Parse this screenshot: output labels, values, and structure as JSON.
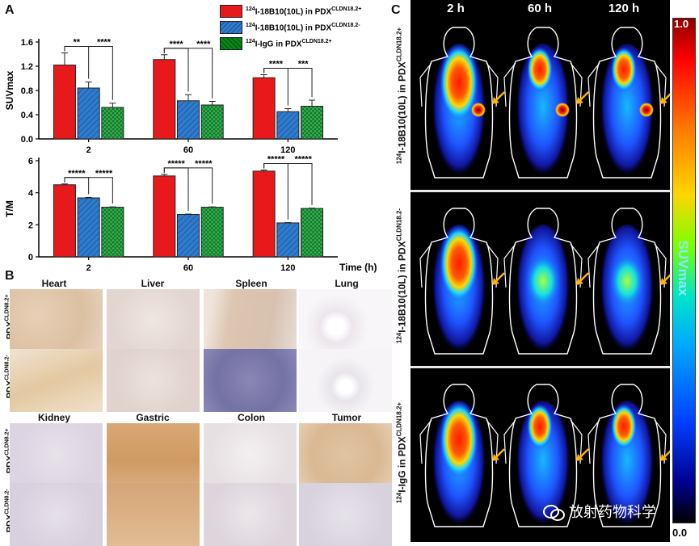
{
  "panels": {
    "a": "A",
    "b": "B",
    "c": "C"
  },
  "legend": [
    {
      "prefix": "124",
      "text": "I-18B10(10L) in PDX",
      "suffix": "CLDN18.2+",
      "color": "#e8191b",
      "pattern": "solid"
    },
    {
      "prefix": "124",
      "text": "I-18B10(10L) in PDX",
      "suffix": "CLDN18.2-",
      "color": "#2f7bcf",
      "pattern": "hatch"
    },
    {
      "prefix": "124",
      "text": "I-IgG in PDX",
      "suffix": "CLDN18.2+",
      "color": "#2fb84c",
      "pattern": "cross"
    }
  ],
  "chart_data": [
    {
      "type": "bar",
      "ylabel": "SUVmax",
      "categories": [
        "2",
        "60",
        "120"
      ],
      "ylim": [
        0,
        1.6
      ],
      "yticks": [
        "0.0",
        "0.4",
        "0.8",
        "1.2",
        "1.6"
      ],
      "series": [
        {
          "values": [
            1.22,
            1.31,
            1.01
          ],
          "errors": [
            0.2,
            0.08,
            0.05
          ]
        },
        {
          "values": [
            0.84,
            0.63,
            0.45
          ],
          "errors": [
            0.1,
            0.1,
            0.05
          ]
        },
        {
          "values": [
            0.52,
            0.56,
            0.54
          ],
          "errors": [
            0.07,
            0.06,
            0.1
          ]
        }
      ],
      "significance": [
        {
          "group": 0,
          "pairs": [
            {
              "to": 1,
              "label": "**"
            },
            {
              "to": 2,
              "label": "****"
            }
          ]
        },
        {
          "group": 1,
          "pairs": [
            {
              "to": 1,
              "label": "****"
            },
            {
              "to": 2,
              "label": "****"
            }
          ]
        },
        {
          "group": 2,
          "pairs": [
            {
              "to": 1,
              "label": "****"
            },
            {
              "to": 2,
              "label": "***"
            }
          ]
        }
      ]
    },
    {
      "type": "bar",
      "ylabel": "T/M",
      "xlabel": "Time (h)",
      "categories": [
        "2",
        "60",
        "120"
      ],
      "ylim": [
        0,
        6
      ],
      "yticks": [
        "0",
        "2",
        "4",
        "6"
      ],
      "series": [
        {
          "values": [
            4.5,
            5.05,
            5.35
          ],
          "errors": [
            0.05,
            0.1,
            0.07
          ]
        },
        {
          "values": [
            3.68,
            2.65,
            2.12
          ],
          "errors": [
            0.03,
            0.02,
            0.02
          ]
        },
        {
          "values": [
            3.1,
            3.1,
            3.02
          ],
          "errors": [
            0.02,
            0.02,
            0.02
          ]
        }
      ],
      "significance": [
        {
          "group": 0,
          "pairs": [
            {
              "to": 1,
              "label": "*****"
            },
            {
              "to": 2,
              "label": "*****"
            }
          ]
        },
        {
          "group": 1,
          "pairs": [
            {
              "to": 1,
              "label": "*****"
            },
            {
              "to": 2,
              "label": "*****"
            }
          ]
        },
        {
          "group": 2,
          "pairs": [
            {
              "to": 1,
              "label": "*****"
            },
            {
              "to": 2,
              "label": "*****"
            }
          ]
        }
      ]
    }
  ],
  "panel_b": {
    "top_tissues": [
      "Heart",
      "Liver",
      "Spleen",
      "Lung"
    ],
    "bottom_tissues": [
      "Kidney",
      "Gastric",
      "Colon",
      "Tumor"
    ],
    "row_pos": {
      "prefix": "PDX",
      "suffix": "CLDN8.2+"
    },
    "row_neg": {
      "prefix": "PDX",
      "suffix": "CLDN8.2-"
    }
  },
  "panel_c": {
    "times": [
      "2 h",
      "60 h",
      "120 h"
    ],
    "rows": [
      {
        "prefix": "124",
        "text": "I-18B10(10L) in PDX",
        "suffix": "CLDN18.2+"
      },
      {
        "prefix": "124",
        "text": "I-18B10(10L) in PDX",
        "suffix": "CLDN18.2-"
      },
      {
        "prefix": "124",
        "text": "I-IgG in PDX",
        "suffix": "CLDN18.2+"
      }
    ],
    "colorbar": {
      "max": "1.0",
      "min": "0.0",
      "label": "SUVmax"
    }
  },
  "watermark": "放射药物科学"
}
